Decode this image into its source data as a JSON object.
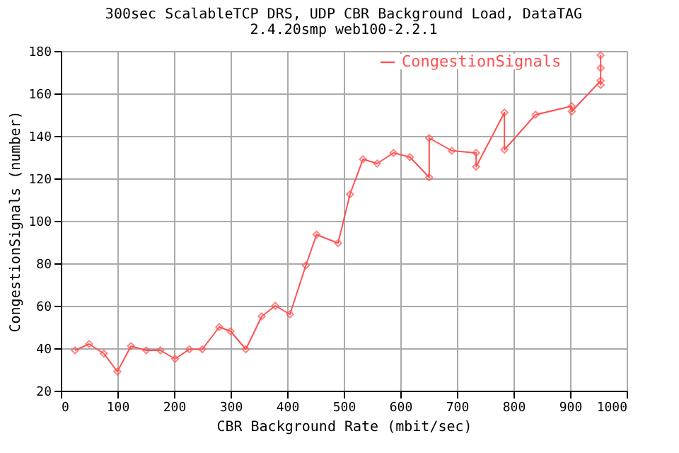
{
  "chart_data": {
    "type": "line",
    "title": "300sec ScalableTCP DRS, UDP CBR Background Load, DataTAG",
    "subtitle": "2.4.20smp web100-2.2.1",
    "xlabel": "CBR Background Rate (mbit/sec)",
    "ylabel": "CongestionSignals (number)",
    "series": [
      {
        "name": "CongestionSignals",
        "color": "#ff5050",
        "x": [
          25,
          50,
          76,
          100,
          124,
          151,
          176,
          202,
          227,
          250,
          280,
          300,
          327,
          355,
          379,
          405,
          433,
          452,
          490,
          511,
          534,
          559,
          588,
          617,
          651,
          651,
          691,
          734,
          734,
          784,
          784,
          839,
          903,
          903,
          954,
          954,
          954,
          954
        ],
        "values": [
          39,
          42,
          37.5,
          29,
          41,
          39,
          39,
          35,
          39.5,
          39.5,
          50,
          48,
          39.5,
          55,
          60,
          56,
          79,
          93.5,
          89.5,
          112.5,
          129,
          127,
          132,
          130,
          120.5,
          139,
          133,
          132,
          125.5,
          151,
          133.5,
          150,
          154,
          151.5,
          166,
          164,
          172,
          178
        ]
      }
    ],
    "xlim": [
      0,
      1000
    ],
    "ylim": [
      20,
      180
    ],
    "xticks": [
      0,
      100,
      200,
      300,
      400,
      500,
      600,
      700,
      800,
      900,
      1000
    ],
    "yticks": [
      20,
      40,
      60,
      80,
      100,
      120,
      140,
      160,
      180
    ],
    "grid": true,
    "legend": "top right",
    "marker": "diamond",
    "line_style": "solid"
  }
}
